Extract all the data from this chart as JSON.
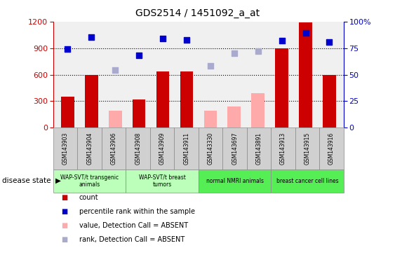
{
  "title": "GDS2514 / 1451092_a_at",
  "samples": [
    "GSM143903",
    "GSM143904",
    "GSM143906",
    "GSM143908",
    "GSM143909",
    "GSM143911",
    "GSM143330",
    "GSM143697",
    "GSM143891",
    "GSM143913",
    "GSM143915",
    "GSM143916"
  ],
  "count_values": [
    350,
    600,
    null,
    320,
    640,
    640,
    null,
    null,
    null,
    900,
    1190,
    600
  ],
  "count_absent": [
    null,
    null,
    190,
    null,
    null,
    null,
    190,
    240,
    390,
    null,
    null,
    null
  ],
  "rank_present": [
    74,
    85,
    null,
    68,
    84,
    83,
    null,
    null,
    null,
    82,
    89,
    81
  ],
  "rank_absent": [
    null,
    null,
    54,
    null,
    null,
    null,
    58,
    70,
    72,
    null,
    null,
    null
  ],
  "ylim_left": [
    0,
    1200
  ],
  "ylim_right": [
    0,
    100
  ],
  "yticks_left": [
    0,
    300,
    600,
    900,
    1200
  ],
  "yticks_right": [
    0,
    25,
    50,
    75,
    100
  ],
  "bar_width": 0.55,
  "marker_size": 40,
  "color_count": "#cc0000",
  "color_count_absent": "#ffaaaa",
  "color_rank": "#0000cc",
  "color_rank_absent": "#aaaacc",
  "bg_color": "#ffffff",
  "plot_bg": "#f0f0f0",
  "sample_box_color": "#d0d0d0",
  "groups": [
    {
      "label": "WAP-SVT/t transgenic\nanimals",
      "cols": [
        0,
        1,
        2
      ],
      "color": "#bbffbb"
    },
    {
      "label": "WAP-SVT/t breast\ntumors",
      "cols": [
        3,
        4,
        5
      ],
      "color": "#bbffbb"
    },
    {
      "label": "normal NMRI animals",
      "cols": [
        6,
        7,
        8
      ],
      "color": "#55ee55"
    },
    {
      "label": "breast cancer cell lines",
      "cols": [
        9,
        10,
        11
      ],
      "color": "#55ee55"
    }
  ],
  "legend_items": [
    {
      "label": "count",
      "color": "#cc0000"
    },
    {
      "label": "percentile rank within the sample",
      "color": "#0000cc"
    },
    {
      "label": "value, Detection Call = ABSENT",
      "color": "#ffaaaa"
    },
    {
      "label": "rank, Detection Call = ABSENT",
      "color": "#aaaacc"
    }
  ]
}
